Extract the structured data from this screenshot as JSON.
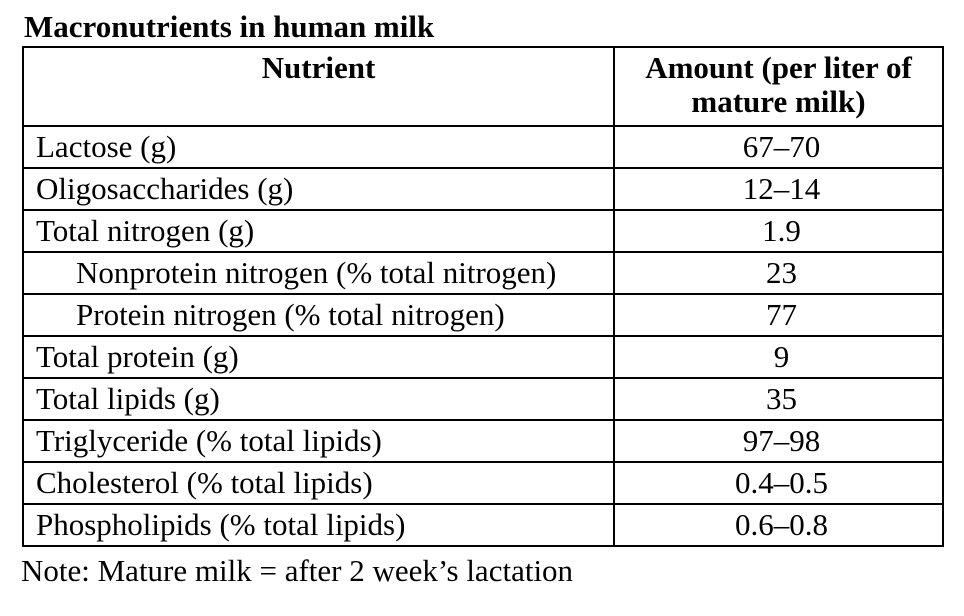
{
  "title": "Macronutrients in human milk",
  "table": {
    "headers": {
      "nutrient": "Nutrient",
      "amount": "Amount (per liter of mature milk)"
    },
    "rows": [
      {
        "nutrient": "Lactose (g)",
        "amount": "67–70",
        "level": 0
      },
      {
        "nutrient": "Oligosaccharides (g)",
        "amount": "12–14",
        "level": 0
      },
      {
        "nutrient": "Total nitrogen (g)",
        "amount": "1.9",
        "level": 0
      },
      {
        "nutrient": "Nonprotein nitrogen (% total nitrogen)",
        "amount": "23",
        "level": 2
      },
      {
        "nutrient": "Protein nitrogen (% total nitrogen)",
        "amount": "77",
        "level": 2
      },
      {
        "nutrient": "Total protein (g)",
        "amount": "9",
        "level": 0
      },
      {
        "nutrient": "Total lipids (g)",
        "amount": "35",
        "level": 0
      },
      {
        "nutrient": "Triglyceride (% total lipids)",
        "amount": "97–98",
        "level": 1
      },
      {
        "nutrient": "Cholesterol (% total lipids)",
        "amount": "0.4–0.5",
        "level": 1
      },
      {
        "nutrient": "Phospholipids (% total lipids)",
        "amount": "0.6–0.8",
        "level": 1
      }
    ]
  },
  "note": "Note: Mature milk = after 2 week’s lactation"
}
